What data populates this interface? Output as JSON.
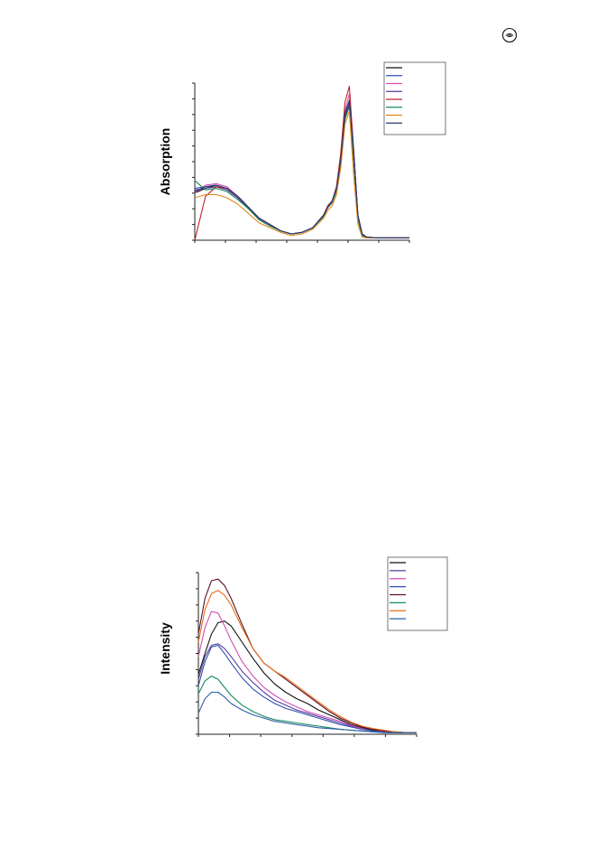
{
  "page": {
    "icon": "publisher-logo-icon"
  },
  "colors": {
    "black": "#111111",
    "blue": "#2f4fb0",
    "magenta": "#d24fb4",
    "indigo": "#5a3c9c",
    "red": "#c2222e",
    "green": "#148a5a",
    "orange": "#e0871a",
    "navy": "#27356e",
    "darkred": "#5a1426",
    "dark_orange": "#e86a1a"
  },
  "chart_data": [
    {
      "type": "line",
      "title": "",
      "xlabel": "",
      "ylabel": "Absorption",
      "xlim": [
        0,
        100
      ],
      "ylim": [
        0,
        1
      ],
      "grid": false,
      "legend": "top-right",
      "legend_entries": 8,
      "x_ticks": 8,
      "y_ticks": 11,
      "series": [
        {
          "color": "#111111",
          "x": [
            0,
            5,
            10,
            15,
            20,
            25,
            30,
            35,
            40,
            45,
            50,
            55,
            60,
            62,
            64,
            66,
            68,
            70,
            72,
            74,
            76,
            78,
            80,
            85,
            90,
            95,
            100
          ],
          "y": [
            0.3,
            0.33,
            0.35,
            0.33,
            0.28,
            0.21,
            0.14,
            0.1,
            0.06,
            0.04,
            0.05,
            0.08,
            0.16,
            0.21,
            0.24,
            0.32,
            0.5,
            0.78,
            0.86,
            0.52,
            0.14,
            0.03,
            0.02,
            0.015,
            0.015,
            0.015,
            0.015
          ]
        },
        {
          "color": "#2f4fb0",
          "x": [
            0,
            5,
            10,
            15,
            20,
            25,
            30,
            35,
            40,
            45,
            50,
            55,
            60,
            62,
            64,
            66,
            68,
            70,
            72,
            74,
            76,
            78,
            80,
            85,
            90,
            95,
            100
          ],
          "y": [
            0.33,
            0.34,
            0.35,
            0.33,
            0.28,
            0.21,
            0.14,
            0.1,
            0.06,
            0.04,
            0.05,
            0.08,
            0.16,
            0.22,
            0.25,
            0.33,
            0.52,
            0.8,
            0.88,
            0.56,
            0.16,
            0.04,
            0.02,
            0.015,
            0.015,
            0.015,
            0.015
          ]
        },
        {
          "color": "#d24fb4",
          "x": [
            0,
            5,
            10,
            15,
            20,
            25,
            30,
            35,
            40,
            45,
            50,
            55,
            60,
            62,
            64,
            66,
            68,
            70,
            72,
            74,
            76,
            78,
            80,
            85,
            90,
            95,
            100
          ],
          "y": [
            0.3,
            0.35,
            0.36,
            0.34,
            0.28,
            0.21,
            0.14,
            0.1,
            0.06,
            0.04,
            0.05,
            0.08,
            0.16,
            0.22,
            0.25,
            0.33,
            0.53,
            0.83,
            0.93,
            0.58,
            0.15,
            0.03,
            0.02,
            0.015,
            0.015,
            0.015,
            0.015
          ]
        },
        {
          "color": "#5a3c9c",
          "x": [
            0,
            5,
            10,
            15,
            20,
            25,
            30,
            35,
            40,
            45,
            50,
            55,
            60,
            62,
            64,
            66,
            68,
            70,
            72,
            74,
            76,
            78,
            80,
            85,
            90,
            95,
            100
          ],
          "y": [
            0.32,
            0.33,
            0.34,
            0.32,
            0.27,
            0.2,
            0.13,
            0.09,
            0.06,
            0.04,
            0.05,
            0.08,
            0.16,
            0.21,
            0.24,
            0.32,
            0.5,
            0.79,
            0.87,
            0.55,
            0.15,
            0.03,
            0.02,
            0.015,
            0.015,
            0.015,
            0.015
          ]
        },
        {
          "color": "#c2222e",
          "x": [
            0,
            5,
            10,
            15,
            20,
            25,
            30,
            35,
            40,
            45,
            50,
            55,
            60,
            62,
            64,
            66,
            68,
            70,
            72,
            74,
            76,
            78,
            80,
            85,
            90,
            95,
            100
          ],
          "y": [
            0.0,
            0.28,
            0.34,
            0.33,
            0.28,
            0.21,
            0.14,
            0.1,
            0.06,
            0.04,
            0.05,
            0.08,
            0.16,
            0.22,
            0.25,
            0.34,
            0.55,
            0.88,
            0.98,
            0.58,
            0.14,
            0.03,
            0.02,
            0.015,
            0.015,
            0.015,
            0.015
          ]
        },
        {
          "color": "#148a5a",
          "x": [
            0,
            5,
            10,
            15,
            20,
            25,
            30,
            35,
            40,
            45,
            50,
            55,
            60,
            62,
            64,
            66,
            68,
            70,
            72,
            74,
            76,
            78,
            80,
            85,
            90,
            95,
            100
          ],
          "y": [
            0.38,
            0.32,
            0.33,
            0.31,
            0.26,
            0.2,
            0.13,
            0.09,
            0.06,
            0.04,
            0.05,
            0.08,
            0.15,
            0.21,
            0.24,
            0.31,
            0.49,
            0.77,
            0.85,
            0.54,
            0.15,
            0.03,
            0.02,
            0.015,
            0.015,
            0.015,
            0.015
          ]
        },
        {
          "color": "#e0871a",
          "x": [
            0,
            5,
            10,
            15,
            20,
            25,
            30,
            35,
            40,
            45,
            50,
            55,
            60,
            62,
            64,
            66,
            68,
            70,
            72,
            74,
            76,
            78,
            80,
            85,
            90,
            95,
            100
          ],
          "y": [
            0.27,
            0.29,
            0.29,
            0.27,
            0.23,
            0.17,
            0.11,
            0.08,
            0.05,
            0.03,
            0.04,
            0.07,
            0.14,
            0.19,
            0.22,
            0.29,
            0.46,
            0.74,
            0.82,
            0.42,
            0.1,
            0.02,
            0.015,
            0.015,
            0.015,
            0.015,
            0.015
          ]
        },
        {
          "color": "#27356e",
          "x": [
            0,
            5,
            10,
            15,
            20,
            25,
            30,
            35,
            40,
            45,
            50,
            55,
            60,
            62,
            64,
            66,
            68,
            70,
            72,
            74,
            76,
            78,
            80,
            85,
            90,
            95,
            100
          ],
          "y": [
            0.31,
            0.34,
            0.35,
            0.33,
            0.28,
            0.21,
            0.14,
            0.1,
            0.06,
            0.04,
            0.05,
            0.08,
            0.16,
            0.21,
            0.25,
            0.33,
            0.51,
            0.81,
            0.89,
            0.57,
            0.16,
            0.04,
            0.02,
            0.015,
            0.015,
            0.015,
            0.015
          ]
        }
      ]
    },
    {
      "type": "line",
      "title": "",
      "xlabel": "",
      "ylabel": "Intensity",
      "xlim": [
        0,
        100
      ],
      "ylim": [
        0,
        1
      ],
      "grid": false,
      "legend": "top-right",
      "legend_entries": 8,
      "x_ticks": 8,
      "y_ticks": 11,
      "series": [
        {
          "color": "#111111",
          "x": [
            0,
            3,
            6,
            9,
            12,
            15,
            20,
            25,
            30,
            35,
            40,
            45,
            50,
            55,
            60,
            65,
            70,
            75,
            80,
            85,
            90,
            95,
            100
          ],
          "y": [
            0.37,
            0.5,
            0.62,
            0.69,
            0.7,
            0.67,
            0.57,
            0.47,
            0.38,
            0.31,
            0.26,
            0.22,
            0.19,
            0.15,
            0.12,
            0.09,
            0.06,
            0.04,
            0.025,
            0.015,
            0.01,
            0.01,
            0.01
          ]
        },
        {
          "color": "#5a3c9c",
          "x": [
            0,
            3,
            6,
            9,
            12,
            15,
            20,
            25,
            30,
            35,
            40,
            45,
            50,
            55,
            60,
            65,
            70,
            75,
            80,
            85,
            90,
            95,
            100
          ],
          "y": [
            0.34,
            0.48,
            0.55,
            0.56,
            0.53,
            0.48,
            0.39,
            0.32,
            0.26,
            0.21,
            0.18,
            0.15,
            0.13,
            0.11,
            0.09,
            0.07,
            0.05,
            0.035,
            0.02,
            0.015,
            0.01,
            0.01,
            0.01
          ]
        },
        {
          "color": "#d24fb4",
          "x": [
            0,
            3,
            6,
            9,
            12,
            15,
            20,
            25,
            30,
            35,
            40,
            45,
            50,
            55,
            60,
            65,
            70,
            75,
            80,
            85,
            90,
            95,
            100
          ],
          "y": [
            0.48,
            0.66,
            0.76,
            0.75,
            0.67,
            0.58,
            0.45,
            0.36,
            0.29,
            0.24,
            0.2,
            0.17,
            0.14,
            0.12,
            0.1,
            0.08,
            0.055,
            0.035,
            0.02,
            0.015,
            0.01,
            0.01,
            0.01
          ]
        },
        {
          "color": "#2f4fb0",
          "x": [
            0,
            3,
            6,
            9,
            12,
            15,
            20,
            25,
            30,
            35,
            40,
            45,
            50,
            55,
            60,
            65,
            70,
            75,
            80,
            85,
            90,
            95,
            100
          ],
          "y": [
            0.3,
            0.45,
            0.54,
            0.55,
            0.5,
            0.44,
            0.35,
            0.28,
            0.23,
            0.19,
            0.16,
            0.14,
            0.12,
            0.1,
            0.08,
            0.06,
            0.045,
            0.03,
            0.02,
            0.012,
            0.01,
            0.01,
            0.01
          ]
        },
        {
          "color": "#5a1426",
          "x": [
            0,
            3,
            6,
            9,
            12,
            15,
            20,
            25,
            30,
            35,
            40,
            45,
            50,
            55,
            60,
            65,
            70,
            75,
            80,
            85,
            90,
            95,
            100
          ],
          "y": [
            0.62,
            0.84,
            0.95,
            0.96,
            0.92,
            0.84,
            0.68,
            0.53,
            0.44,
            0.39,
            0.34,
            0.29,
            0.24,
            0.19,
            0.14,
            0.1,
            0.07,
            0.045,
            0.03,
            0.02,
            0.015,
            0.01,
            0.01
          ]
        },
        {
          "color": "#148a5a",
          "x": [
            0,
            3,
            6,
            9,
            12,
            15,
            20,
            25,
            30,
            35,
            40,
            45,
            50,
            55,
            60,
            65,
            70,
            75,
            80,
            85,
            90,
            95,
            100
          ],
          "y": [
            0.25,
            0.33,
            0.36,
            0.34,
            0.29,
            0.24,
            0.18,
            0.14,
            0.11,
            0.09,
            0.08,
            0.07,
            0.06,
            0.05,
            0.04,
            0.03,
            0.025,
            0.02,
            0.015,
            0.01,
            0.01,
            0.01,
            0.01
          ]
        },
        {
          "color": "#e86a1a",
          "x": [
            0,
            3,
            6,
            9,
            12,
            15,
            20,
            25,
            30,
            35,
            40,
            45,
            50,
            55,
            60,
            65,
            70,
            75,
            80,
            85,
            90,
            95,
            100
          ],
          "y": [
            0.57,
            0.77,
            0.87,
            0.89,
            0.86,
            0.8,
            0.66,
            0.53,
            0.44,
            0.39,
            0.35,
            0.3,
            0.25,
            0.2,
            0.15,
            0.11,
            0.075,
            0.05,
            0.035,
            0.025,
            0.015,
            0.01,
            0.01
          ]
        },
        {
          "color": "#2a5fa8",
          "x": [
            0,
            3,
            6,
            9,
            12,
            15,
            20,
            25,
            30,
            35,
            40,
            45,
            50,
            55,
            60,
            65,
            70,
            75,
            80,
            85,
            90,
            95,
            100
          ],
          "y": [
            0.13,
            0.22,
            0.26,
            0.26,
            0.23,
            0.19,
            0.15,
            0.12,
            0.1,
            0.08,
            0.07,
            0.06,
            0.05,
            0.04,
            0.035,
            0.03,
            0.025,
            0.02,
            0.015,
            0.01,
            0.01,
            0.01,
            0.01
          ]
        }
      ]
    }
  ]
}
